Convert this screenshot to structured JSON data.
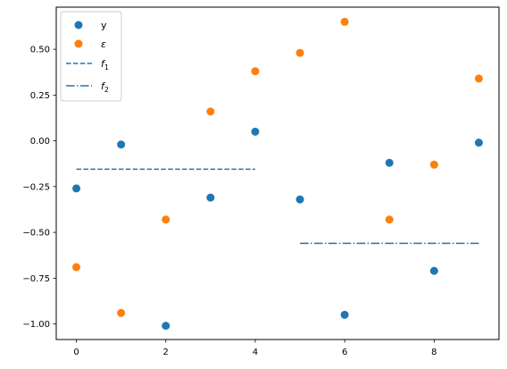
{
  "chart_data": {
    "type": "scatter",
    "xlim": [
      -0.45,
      9.45
    ],
    "ylim": [
      -1.085,
      0.73
    ],
    "x_ticks": [
      0,
      2,
      4,
      6,
      8
    ],
    "y_ticks": [
      -1.0,
      -0.75,
      -0.5,
      -0.25,
      0.0,
      0.25,
      0.5
    ],
    "x_tick_labels": [
      "0",
      "2",
      "4",
      "6",
      "8"
    ],
    "y_tick_labels": [
      "−1.00",
      "−0.75",
      "−0.50",
      "−0.25",
      "0.00",
      "0.25",
      "0.50"
    ],
    "grid": false,
    "legend_position": "top-left",
    "series": [
      {
        "name": "y",
        "kind": "scatter",
        "color": "#1f77b4",
        "x": [
          0,
          1,
          2,
          3,
          4,
          5,
          6,
          7,
          8,
          9
        ],
        "y": [
          -0.26,
          -0.02,
          -1.01,
          -0.31,
          0.05,
          -0.32,
          -0.95,
          -0.12,
          -0.71,
          -0.01
        ]
      },
      {
        "name": "ε",
        "kind": "scatter",
        "color": "#ff7f0e",
        "x": [
          0,
          1,
          2,
          3,
          4,
          5,
          6,
          7,
          8,
          9
        ],
        "y": [
          -0.69,
          -0.94,
          -0.43,
          0.16,
          0.38,
          0.48,
          0.65,
          -0.43,
          -0.13,
          0.34
        ]
      },
      {
        "name_base": "f",
        "name_sub": "1",
        "kind": "line",
        "dash": "dashed",
        "color": "#1f77b4",
        "x": [
          0,
          4
        ],
        "y": [
          -0.155,
          -0.155
        ]
      },
      {
        "name_base": "f",
        "name_sub": "2",
        "kind": "line",
        "dash": "dashdot",
        "color": "#1f77b4",
        "x": [
          5,
          9
        ],
        "y": [
          -0.56,
          -0.56
        ]
      }
    ]
  }
}
